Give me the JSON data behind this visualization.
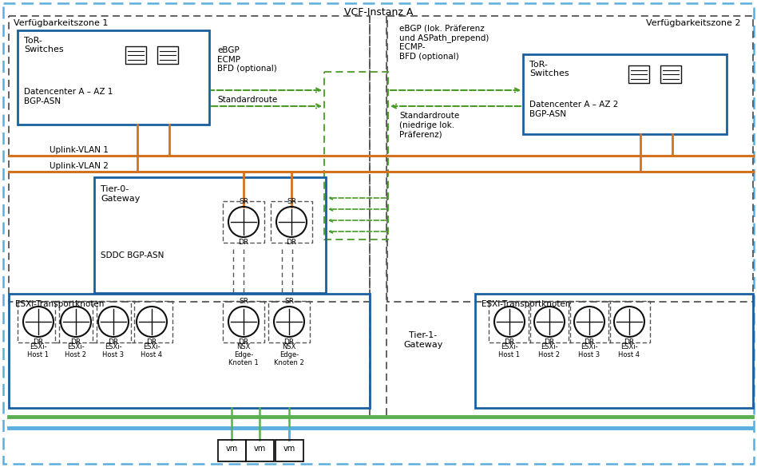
{
  "title": "VCF-Instanz A",
  "az1_label": "Verfügbarkeitszone 1",
  "az2_label": "Verfügbarkeitszone 2",
  "tor1_line1": "ToR-",
  "tor1_line2": "Switches",
  "tor1_line3": "Datencenter A – AZ 1",
  "tor1_line4": "BGP-ASN",
  "tor2_line1": "ToR-",
  "tor2_line2": "Switches",
  "tor2_line3": "Datencenter A – AZ 2",
  "tor2_line4": "BGP-ASN",
  "t0_line1": "Tier-0-",
  "t0_line2": "Gateway",
  "t0_line3": "SDDC BGP-ASN",
  "t1_line1": "Tier-1-",
  "t1_line2": "Gateway",
  "ebgp_left": "eBGP\nECMP\nBFD (optional)",
  "stdroute_left": "Standardroute",
  "ebgp_right": "eBGP (lok. Präferenz\nund ASPath_prepend)\nECMP-\nBFD (optional)",
  "stdroute_right": "Standardroute\n(niedrige lok.\nPräferenz)",
  "uplink1": "Uplink-VLAN 1",
  "uplink2": "Uplink-VLAN 2",
  "esxi_tn_left": "ESXi-Transportknoten",
  "esxi_tn_right": "ESXi-Transportknoten",
  "hosts_left": [
    "ESXi-\nHost 1",
    "ESXi-\nHost 2",
    "ESXi-\nHost 3",
    "ESXi-\nHost 4",
    "NSX\nEdge-\nKnoten 1",
    "NSX\nEdge-\nKnoten 2"
  ],
  "hosts_right": [
    "ESXi-\nHost 1",
    "ESXi-\nHost 2",
    "ESXi-\nHost 3",
    "ESXi-\nHost 4"
  ],
  "c_blue_dark": "#1a5fa0",
  "c_blue_light": "#5aafdf",
  "c_orange": "#d4711e",
  "c_green": "#4a9a28",
  "c_gray": "#555555",
  "c_white": "#ffffff",
  "c_black": "#111111"
}
